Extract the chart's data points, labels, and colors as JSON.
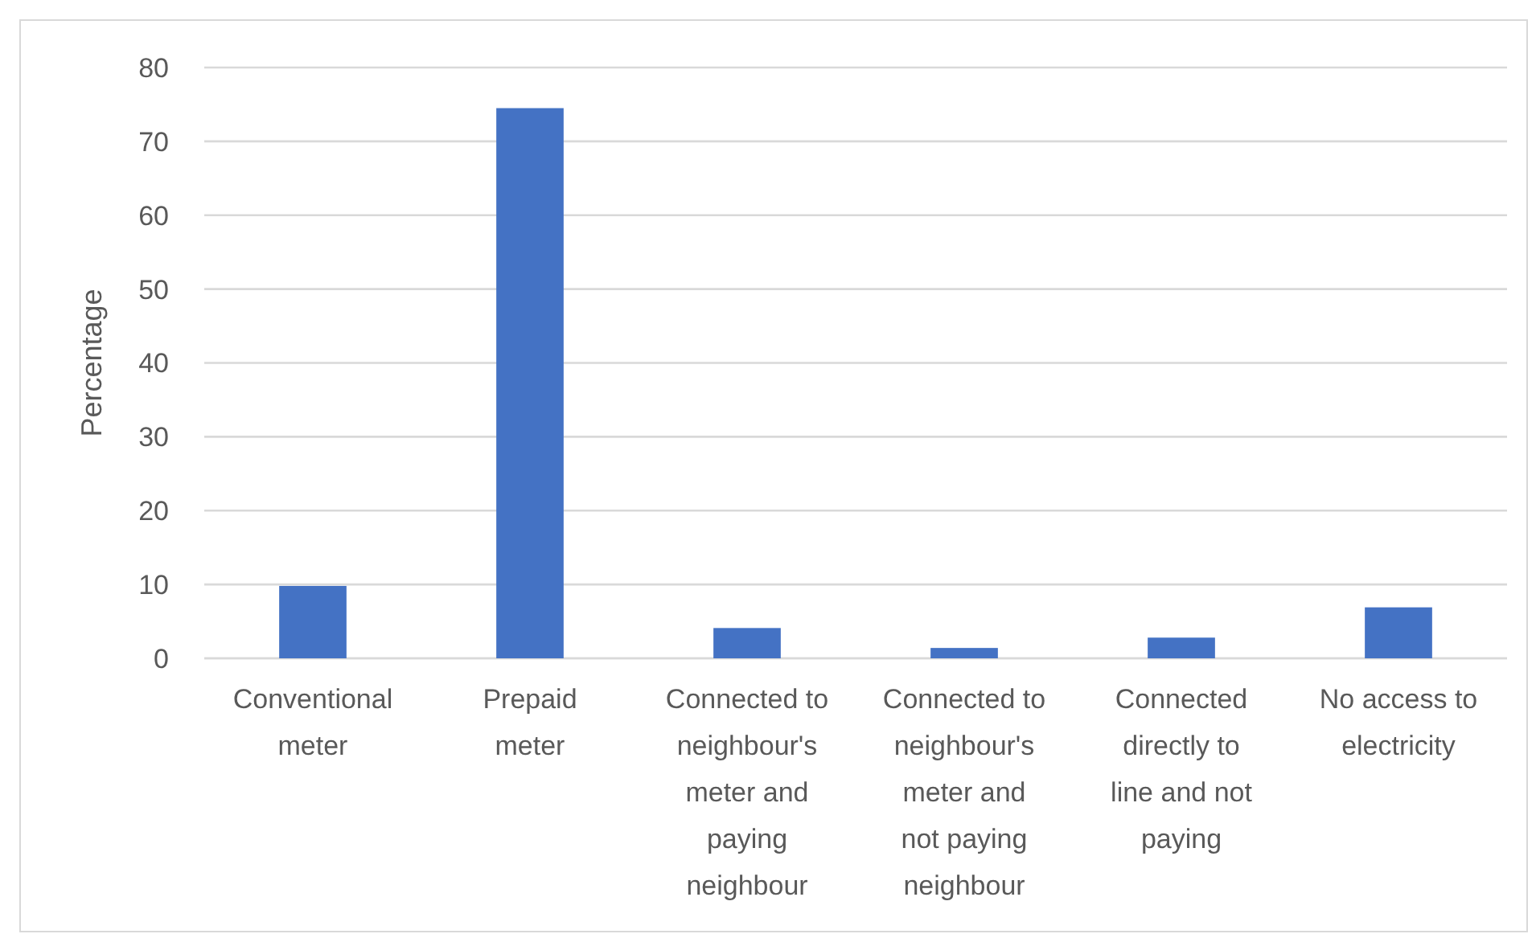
{
  "chart_data": {
    "type": "bar",
    "ylabel": "Percentage",
    "categories": [
      "Conventional meter",
      "Prepaid meter",
      "Connected to neighbour's meter and paying neighbour",
      "Connected to neighbour's meter and not paying neighbour",
      "Connected directly to line and not paying",
      "No access to electricity"
    ],
    "values": [
      9.8,
      74.5,
      4.1,
      1.4,
      2.8,
      6.9
    ],
    "color": "#4472c4",
    "ylim": [
      0,
      80
    ],
    "yticks": [
      0,
      10,
      20,
      30,
      40,
      50,
      60,
      70,
      80
    ],
    "grid": "y"
  }
}
